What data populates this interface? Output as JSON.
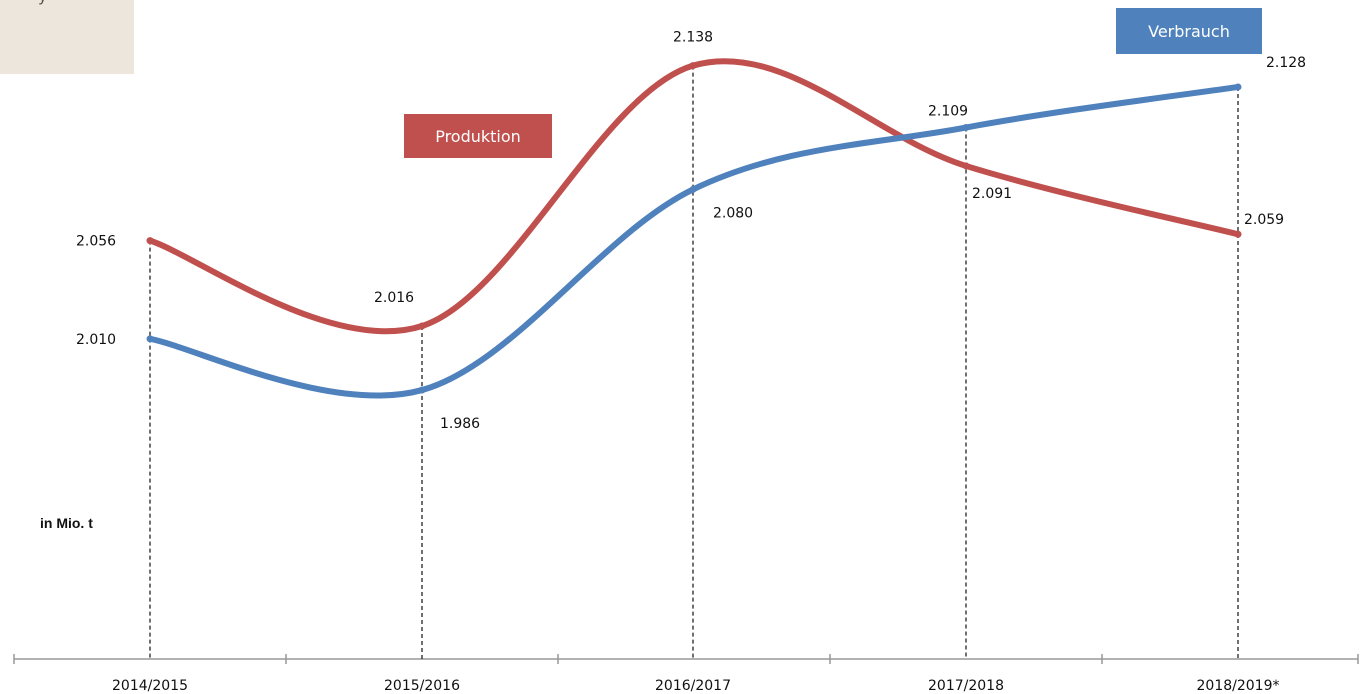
{
  "corner_text": "y",
  "unit_label": "in Mio. t",
  "chart_data": {
    "type": "line",
    "categories": [
      "2014/2015",
      "2015/2016",
      "2016/2017",
      "2017/2018",
      "2018/2019*"
    ],
    "series": [
      {
        "name": "Produktion",
        "color": "#c0504d",
        "values": [
          2.056,
          2.016,
          2.138,
          2.091,
          2.059
        ],
        "labels": [
          "2.056",
          "2.016",
          "2.138",
          "2.091",
          "2.059"
        ]
      },
      {
        "name": "Verbrauch",
        "color": "#4f81bd",
        "values": [
          2.01,
          1.986,
          2.08,
          2.109,
          2.128
        ],
        "labels": [
          "2.010",
          "1.986",
          "2.080",
          "2.109",
          "2.128"
        ]
      }
    ],
    "ylabel": "in Mio. t",
    "ylim": [
      1.86,
      2.15
    ],
    "grid": false,
    "legend": [
      "Produktion",
      "Verbrauch"
    ]
  }
}
